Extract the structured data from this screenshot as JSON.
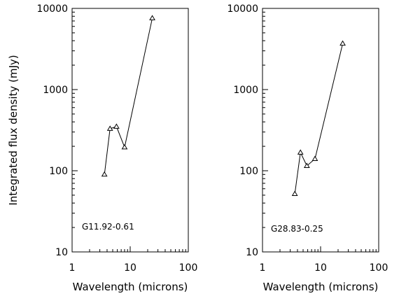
{
  "chart_data": [
    {
      "type": "line",
      "title": "",
      "label": "G11.92-0.61",
      "xlabel": "Wavelength (microns)",
      "ylabel": "Integrated flux density (mJy)",
      "xscale": "log",
      "yscale": "log",
      "xlim": [
        1,
        100
      ],
      "ylim": [
        10,
        10000
      ],
      "xticks": [
        1,
        10,
        100
      ],
      "xtick_labels": [
        "1",
        "10",
        "100"
      ],
      "yticks": [
        10,
        100,
        1000,
        10000
      ],
      "ytick_labels": [
        "10",
        "100",
        "1000",
        "10000"
      ],
      "marker": "open-triangle",
      "grid": false,
      "x": [
        3.6,
        4.5,
        5.8,
        8.0,
        24.0
      ],
      "y": [
        90,
        330,
        350,
        195,
        7600
      ]
    },
    {
      "type": "line",
      "title": "",
      "label": "G28.83-0.25",
      "xlabel": "Wavelength (microns)",
      "ylabel": "",
      "xscale": "log",
      "yscale": "log",
      "xlim": [
        1,
        100
      ],
      "ylim": [
        10,
        10000
      ],
      "xticks": [
        1,
        10,
        100
      ],
      "xtick_labels": [
        "1",
        "10",
        "100"
      ],
      "yticks": [
        10,
        100,
        1000,
        10000
      ],
      "ytick_labels": [
        "10",
        "100",
        "1000",
        "10000"
      ],
      "marker": "open-triangle",
      "grid": false,
      "x": [
        3.6,
        4.5,
        5.8,
        8.0,
        24.0
      ],
      "y": [
        52,
        168,
        115,
        140,
        3700
      ]
    }
  ]
}
